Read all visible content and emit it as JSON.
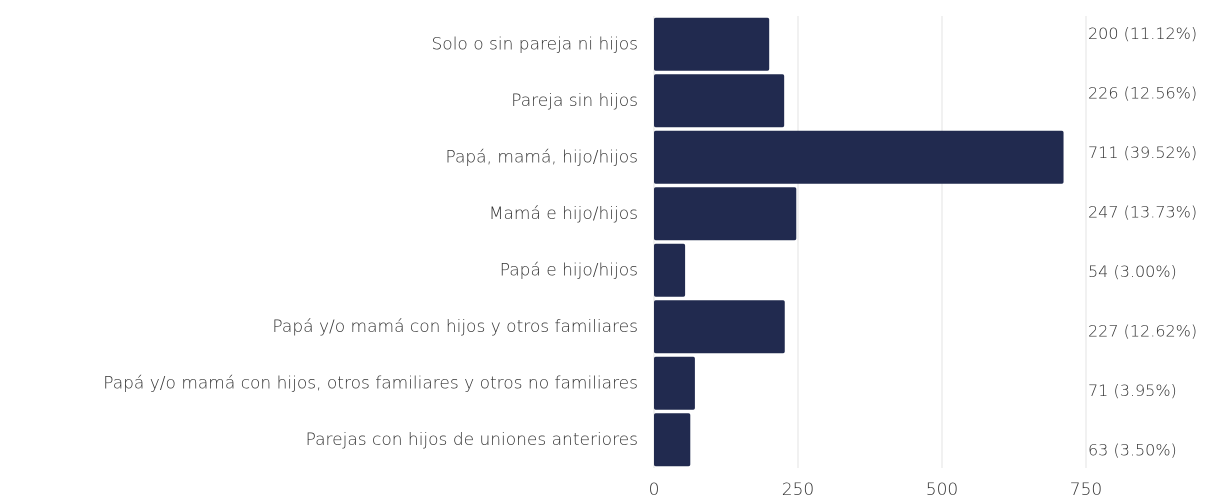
{
  "chart_data": {
    "type": "bar",
    "orientation": "horizontal",
    "categories": [
      "Solo o sin pareja ni hijos",
      "Pareja sin hijos",
      "Papá, mamá, hijo/hijos",
      "Mamá e hijo/hijos",
      "Papá e hijo/hijos",
      "Papá y/o mamá con hijos y otros familiares",
      "Papá y/o mamá con hijos, otros familiares y otros no familiares",
      "Parejas con hijos de uniones anteriores"
    ],
    "values": [
      200,
      226,
      711,
      247,
      54,
      227,
      71,
      63
    ],
    "value_labels": [
      "200  (11.12%)",
      "226 (12.56%)",
      "711 (39.52%)",
      "247 (13.73%)",
      "54 (3.00%)",
      "227 (12.62%)",
      "71 (3.95%)",
      "63 (3.50%)"
    ],
    "color": "#212a4f",
    "xlim": [
      0,
      750
    ],
    "xticks": [
      0,
      250,
      500,
      750
    ],
    "grid": true
  }
}
